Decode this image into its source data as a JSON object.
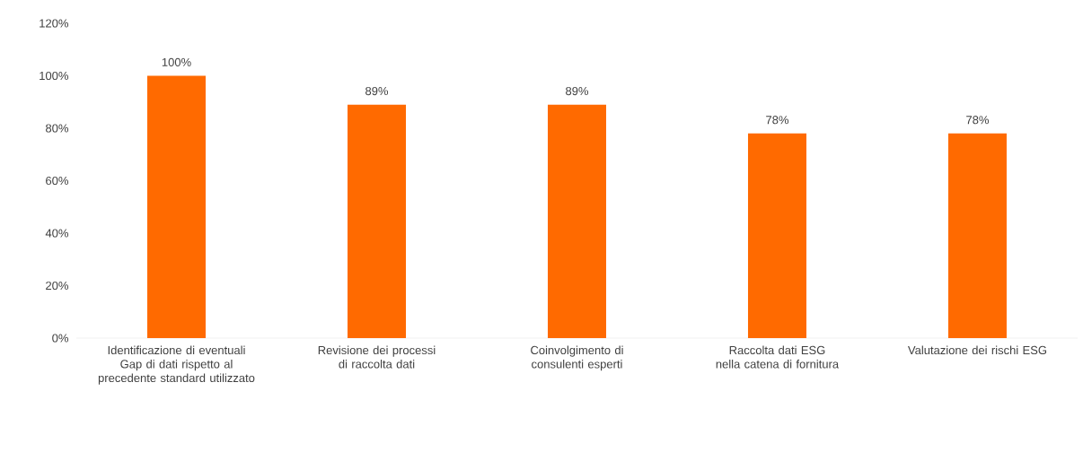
{
  "chart_data": {
    "type": "bar",
    "categories": [
      "Identificazione di eventuali Gap di dati rispetto al precedente standard utilizzato",
      "Revisione dei processi di raccolta dati",
      "Coinvolgimento di consulenti esperti",
      "Raccolta dati ESG nella catena di fornitura",
      "Valutazione dei rischi ESG"
    ],
    "values": [
      100,
      89,
      89,
      78,
      78
    ],
    "value_labels": [
      "100%",
      "89%",
      "89%",
      "78%",
      "78%"
    ],
    "color": "#ff6a00",
    "ylim": [
      0,
      120
    ],
    "yticks": [
      {
        "value": 0,
        "label": "0%"
      },
      {
        "value": 20,
        "label": "20%"
      },
      {
        "value": 40,
        "label": "40%"
      },
      {
        "value": 60,
        "label": "60%"
      },
      {
        "value": 80,
        "label": "80%"
      },
      {
        "value": 100,
        "label": "100%"
      },
      {
        "value": 120,
        "label": "120%"
      }
    ],
    "grid": false
  }
}
